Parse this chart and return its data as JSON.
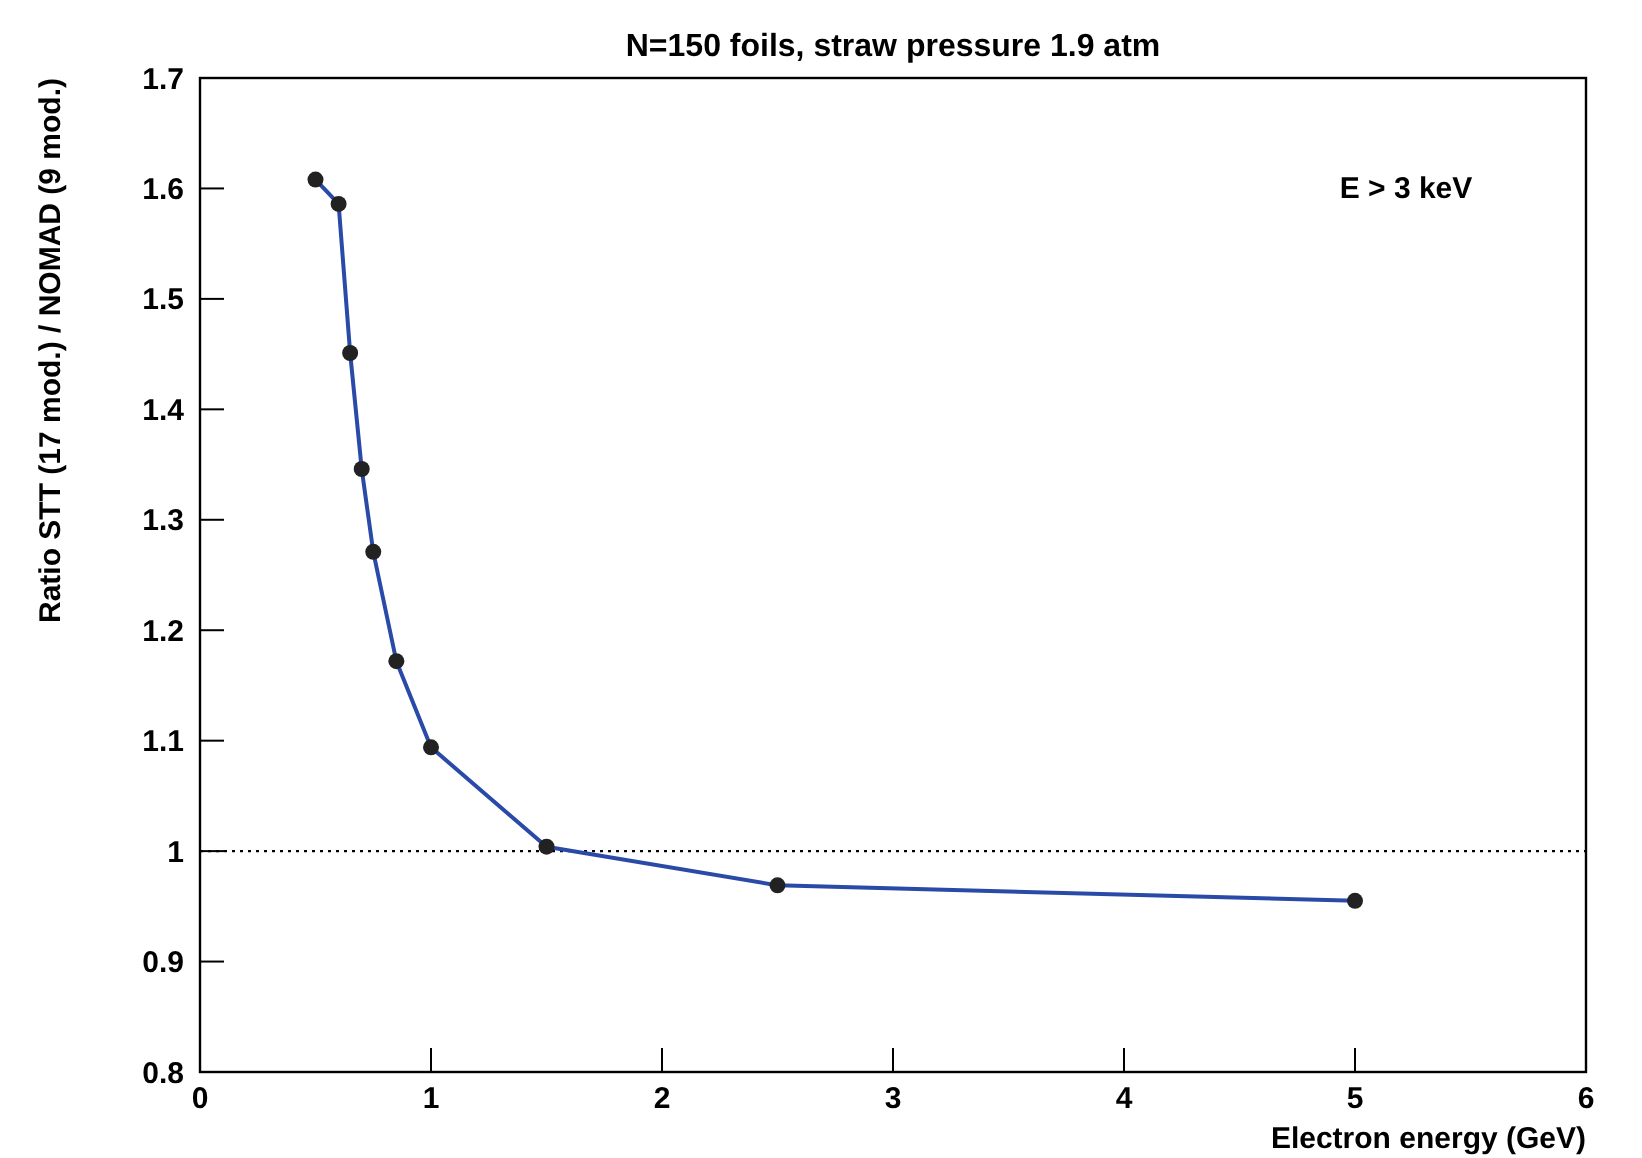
{
  "chart_data": {
    "type": "line",
    "title": "N=150 foils, straw pressure 1.9 atm",
    "xlabel": "Electron energy (GeV)",
    "ylabel": "Ratio STT (17 mod.) / NOMAD (9 mod.)",
    "x": [
      0.5,
      0.6,
      0.65,
      0.7,
      0.75,
      0.85,
      1,
      1.5,
      2.5,
      5
    ],
    "series": [
      {
        "color": "#2a4aa8",
        "values": [
          1.608,
          1.586,
          1.451,
          1.346,
          1.271,
          1.172,
          1.094,
          1.004,
          0.969,
          0.955
        ]
      }
    ],
    "xlim": [
      0,
      6
    ],
    "xticks": [
      0,
      1,
      2,
      3,
      4,
      5,
      6
    ],
    "ylim": [
      0.8,
      1.7
    ],
    "yticks": [
      0.8,
      0.9,
      1,
      1.1,
      1.2,
      1.3,
      1.4,
      1.5,
      1.6,
      1.7
    ],
    "marker": "circle",
    "line_style": "solid",
    "grid": false,
    "ref_lines": [
      {
        "axis": "y",
        "value": 1,
        "line_style": "dotted",
        "color": "#000000"
      }
    ],
    "annotations": [
      "E > 3 keV"
    ]
  }
}
